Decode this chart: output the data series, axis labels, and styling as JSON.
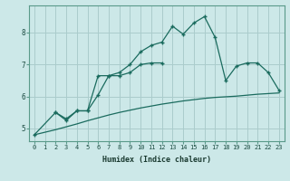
{
  "xlabel": "Humidex (Indice chaleur)",
  "background_color": "#cce8e8",
  "line_color": "#1a6b5e",
  "grid_color": "#aacccc",
  "ylim": [
    4.6,
    8.85
  ],
  "xlim": [
    -0.5,
    23.5
  ],
  "yticks": [
    5,
    6,
    7,
    8
  ],
  "xticks": [
    0,
    1,
    2,
    3,
    4,
    5,
    6,
    7,
    8,
    9,
    10,
    11,
    12,
    13,
    14,
    15,
    16,
    17,
    18,
    19,
    20,
    21,
    22,
    23
  ],
  "smooth_x": [
    0,
    1,
    2,
    3,
    4,
    5,
    6,
    7,
    8,
    9,
    10,
    11,
    12,
    13,
    14,
    15,
    16,
    17,
    18,
    19,
    20,
    21,
    22,
    23
  ],
  "smooth_y": [
    4.8,
    4.88,
    4.96,
    5.05,
    5.14,
    5.24,
    5.33,
    5.42,
    5.5,
    5.57,
    5.64,
    5.7,
    5.76,
    5.81,
    5.86,
    5.9,
    5.94,
    5.97,
    5.99,
    6.01,
    6.04,
    6.07,
    6.09,
    6.11
  ],
  "upper_x": [
    0,
    2,
    3,
    4,
    5,
    6,
    7,
    8,
    9,
    10,
    11,
    12,
    13,
    14,
    15,
    16,
    17,
    18,
    19,
    20,
    21,
    22,
    23
  ],
  "upper_y": [
    4.8,
    5.5,
    5.3,
    5.55,
    5.55,
    6.65,
    6.65,
    6.75,
    7.0,
    7.4,
    7.6,
    7.7,
    8.2,
    7.95,
    8.3,
    8.5,
    7.85,
    6.5,
    6.95,
    7.05,
    7.05,
    6.75,
    6.2
  ],
  "lower_x": [
    2,
    3,
    4,
    5,
    6,
    7,
    8,
    9,
    10,
    11,
    12
  ],
  "lower_y": [
    5.5,
    5.25,
    5.55,
    5.55,
    6.05,
    6.65,
    6.65,
    6.75,
    7.0,
    7.05,
    7.05
  ]
}
